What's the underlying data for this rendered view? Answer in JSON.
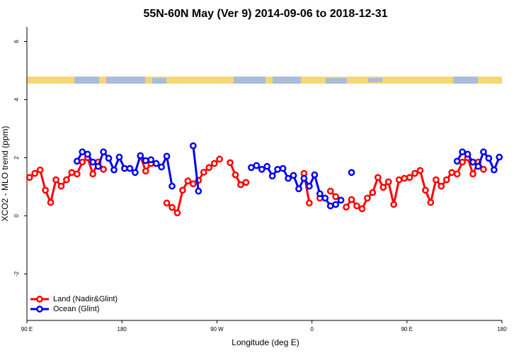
{
  "chart_data": {
    "type": "line",
    "title": "55N-60N May (Ver 9)   2014-09-06 to 2018-12-31",
    "x_label": "Longitude (deg E)",
    "y_label": "XCO2 - MLO trend (ppm)",
    "x": [
      92.5,
      97.5,
      102.5,
      107.5,
      112.5,
      117.5,
      122.5,
      127.5,
      132.5,
      137.5,
      142.5,
      147.5,
      152.5,
      157.5,
      162.5,
      167.5,
      172.5,
      177.5,
      182.5,
      187.5,
      192.5,
      197.5,
      202.5,
      207.5,
      212.5,
      217.5,
      222.5,
      227.5,
      232.5,
      237.5,
      242.5,
      247.5,
      252.5,
      257.5,
      262.5,
      267.5,
      272.5,
      277.5,
      282.5,
      287.5,
      292.5,
      297.5,
      302.5,
      307.5,
      312.5,
      317.5,
      322.5,
      327.5,
      332.5,
      337.5,
      342.5,
      347.5,
      352.5,
      357.5,
      362.5,
      367.5,
      372.5,
      377.5,
      382.5,
      387.5,
      392.5,
      397.5,
      402.5,
      407.5,
      412.5,
      417.5,
      422.5,
      427.5,
      432.5,
      437.5,
      442.5,
      447.5,
      452.5,
      457.5,
      462.5,
      467.5,
      472.5,
      477.5,
      482.5,
      487.5,
      492.5,
      497.5,
      502.5,
      507.5,
      512.5,
      517.5,
      522.5,
      527.5,
      532.5,
      537.5
    ],
    "series": [
      {
        "name": "Land (Nadir&Glint)",
        "color": "#ff0000",
        "values": [
          1.32,
          1.46,
          1.58,
          0.88,
          0.46,
          1.24,
          1.02,
          1.24,
          1.49,
          1.44,
          1.85,
          2.0,
          1.44,
          1.85,
          1.6,
          null,
          null,
          null,
          null,
          null,
          null,
          2.05,
          1.54,
          1.8,
          null,
          null,
          0.44,
          0.29,
          0.1,
          0.88,
          1.2,
          1.1,
          1.22,
          1.5,
          1.66,
          1.8,
          1.95,
          null,
          1.83,
          1.41,
          1.07,
          1.15,
          null,
          null,
          null,
          null,
          null,
          null,
          null,
          null,
          null,
          null,
          1.46,
          0.44,
          null,
          0.61,
          null,
          0.85,
          0.66,
          null,
          0.3,
          0.56,
          0.34,
          0.24,
          0.61,
          0.8,
          1.32,
          0.98,
          1.17,
          0.39,
          1.24,
          1.29,
          1.32,
          1.46,
          1.56,
          0.88,
          0.46,
          1.24,
          1.02,
          1.24,
          1.49,
          1.44,
          1.85,
          2.0,
          1.44,
          1.85,
          1.6,
          null,
          null,
          null
        ]
      },
      {
        "name": "Ocean (Glint)",
        "color": "#0000ee",
        "values": [
          null,
          null,
          null,
          null,
          null,
          null,
          null,
          null,
          null,
          1.88,
          2.2,
          2.12,
          1.85,
          1.7,
          2.2,
          1.98,
          1.58,
          2.02,
          1.63,
          1.63,
          1.49,
          2.07,
          1.9,
          1.93,
          1.8,
          1.68,
          2.05,
          1.02,
          null,
          null,
          null,
          2.41,
          0.85,
          null,
          null,
          null,
          null,
          null,
          null,
          null,
          null,
          null,
          1.66,
          1.73,
          1.6,
          1.7,
          1.37,
          1.6,
          1.63,
          1.29,
          1.39,
          0.93,
          1.29,
          1.02,
          1.41,
          0.76,
          0.61,
          0.34,
          0.39,
          0.54,
          null,
          1.49,
          null,
          null,
          null,
          null,
          null,
          null,
          null,
          null,
          null,
          null,
          null,
          null,
          null,
          null,
          null,
          null,
          null,
          null,
          null,
          1.88,
          2.2,
          2.12,
          1.85,
          1.7,
          2.2,
          1.98,
          1.58,
          2.02
        ]
      }
    ],
    "xlim": [
      90,
      540
    ],
    "xticks": [
      {
        "value": 90,
        "label": "90 E"
      },
      {
        "value": 180,
        "label": "180"
      },
      {
        "value": 270,
        "label": "90 W"
      },
      {
        "value": 360,
        "label": "0"
      },
      {
        "value": 450,
        "label": "90 E"
      },
      {
        "value": 540,
        "label": "180"
      }
    ],
    "ylim": [
      -3.6,
      6.5
    ],
    "yticks": [
      -2,
      0,
      2,
      4,
      6
    ],
    "legend": "bottom-left"
  }
}
